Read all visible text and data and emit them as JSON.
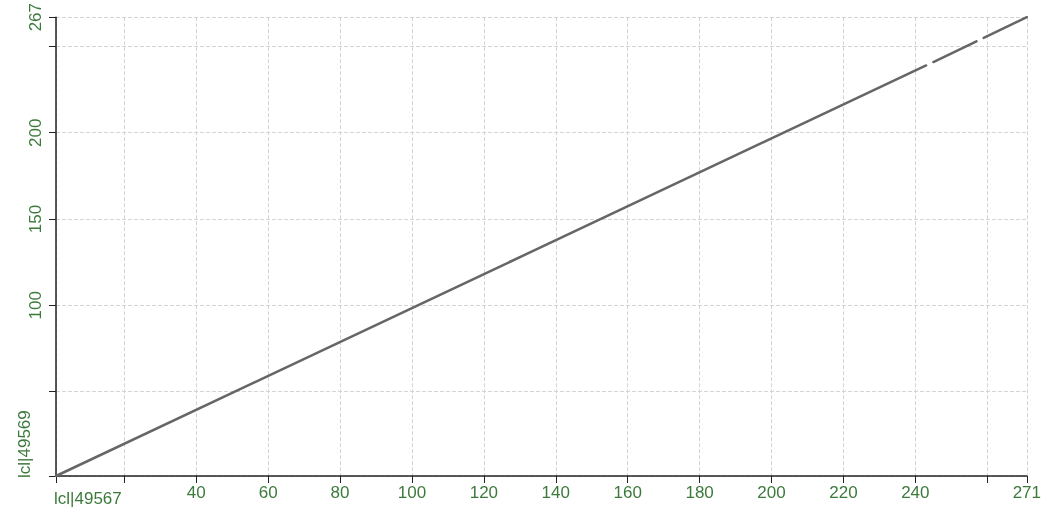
{
  "chart_data": {
    "type": "line",
    "xlabel": "lcl|49567",
    "ylabel": "lcl|49569",
    "series": [
      {
        "color": "#666666",
        "x": [
          1,
          243,
          244,
          245,
          257,
          258,
          259,
          271
        ],
        "values": [
          1,
          239,
          null,
          241,
          253,
          null,
          255,
          267
        ]
      }
    ],
    "xlim": [
      1,
      271
    ],
    "ylim": [
      1,
      267
    ],
    "xticks": [
      {
        "value": 1,
        "label": null
      },
      {
        "value": 20,
        "label": null
      },
      40,
      60,
      80,
      100,
      120,
      140,
      160,
      180,
      200,
      220,
      240,
      {
        "value": 260,
        "label": null
      },
      271
    ],
    "yticks": [
      {
        "value": 1,
        "label": null
      },
      {
        "value": 50,
        "label": null
      },
      100,
      150,
      200,
      {
        "value": 250,
        "label": null
      },
      267
    ],
    "grid": true,
    "marker": "none",
    "line_style": "solid"
  }
}
